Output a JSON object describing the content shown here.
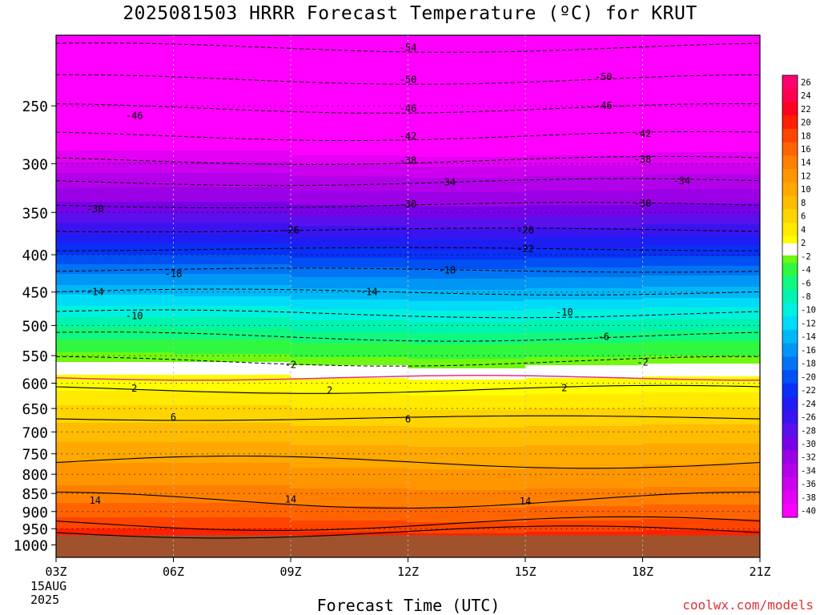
{
  "title": "2025081503 HRRR Forecast Temperature (ºC) for KRUT",
  "xlabel": "Forecast Time (UTC)",
  "credit": "coolwx.com/models",
  "date_label": [
    "15AUG",
    "2025"
  ],
  "chart_data": {
    "type": "heatmap",
    "title": "2025081503 HRRR Forecast Temperature (ºC) for KRUT",
    "xlabel": "Forecast Time (UTC)",
    "x_ticks": [
      "03Z",
      "06Z",
      "09Z",
      "12Z",
      "15Z",
      "18Z",
      "21Z"
    ],
    "x_hours": [
      3,
      6,
      9,
      12,
      15,
      18,
      21
    ],
    "y_ticks": [
      250,
      300,
      350,
      400,
      450,
      500,
      550,
      600,
      650,
      700,
      750,
      800,
      850,
      900,
      950,
      1000
    ],
    "y_axis_top_hpa": 200,
    "y_axis_bottom_hpa": 1040,
    "y_scale": "log-pressure",
    "surface_pressure_hpa": 970,
    "colorbar_ticks": [
      26,
      24,
      22,
      20,
      18,
      16,
      14,
      12,
      10,
      8,
      6,
      4,
      2,
      -2,
      -4,
      -6,
      -8,
      -10,
      -12,
      -14,
      -16,
      -18,
      -20,
      -22,
      -24,
      -26,
      -28,
      -30,
      -32,
      -34,
      -36,
      -38,
      -40
    ],
    "colors": {
      "ground": "#a0522d",
      "freezing_line": "#e0308a",
      "credit": "#e0303a"
    },
    "color_levels": [
      {
        "t": -40,
        "color": "#ff00ff"
      },
      {
        "t": -38,
        "color": "#e400f4"
      },
      {
        "t": -36,
        "color": "#cc00ee"
      },
      {
        "t": -34,
        "color": "#b400ea"
      },
      {
        "t": -32,
        "color": "#9c00e6"
      },
      {
        "t": -30,
        "color": "#7800e8"
      },
      {
        "t": -28,
        "color": "#5a10ec"
      },
      {
        "t": -26,
        "color": "#3a14f0"
      },
      {
        "t": -24,
        "color": "#1e1ef4"
      },
      {
        "t": -22,
        "color": "#0a30f6"
      },
      {
        "t": -20,
        "color": "#0050f4"
      },
      {
        "t": -18,
        "color": "#0074f4"
      },
      {
        "t": -16,
        "color": "#0096f6"
      },
      {
        "t": -14,
        "color": "#00b8f8"
      },
      {
        "t": -12,
        "color": "#00dcf8"
      },
      {
        "t": -10,
        "color": "#00f0e0"
      },
      {
        "t": -8,
        "color": "#00f4b0"
      },
      {
        "t": -6,
        "color": "#10f880"
      },
      {
        "t": -4,
        "color": "#30f840"
      },
      {
        "t": -2,
        "color": "#70f810"
      },
      {
        "t": 0,
        "color": "#ffffff"
      },
      {
        "t": 2,
        "color": "#ffff00"
      },
      {
        "t": 4,
        "color": "#ffea00"
      },
      {
        "t": 6,
        "color": "#ffd400"
      },
      {
        "t": 8,
        "color": "#ffbc00"
      },
      {
        "t": 10,
        "color": "#ffa800"
      },
      {
        "t": 12,
        "color": "#ff9600"
      },
      {
        "t": 14,
        "color": "#ff8000"
      },
      {
        "t": 16,
        "color": "#ff6400"
      },
      {
        "t": 18,
        "color": "#ff4400"
      },
      {
        "t": 20,
        "color": "#ff2000"
      },
      {
        "t": 22,
        "color": "#ff0020"
      },
      {
        "t": 24,
        "color": "#ff0050"
      },
      {
        "t": 26,
        "color": "#ff0070"
      }
    ],
    "temperature_profile": [
      {
        "p": 200,
        "t": -57
      },
      {
        "p": 230,
        "t": -52
      },
      {
        "p": 250,
        "t": -47
      },
      {
        "p": 270,
        "t": -43
      },
      {
        "p": 290,
        "t": -39
      },
      {
        "p": 310,
        "t": -35
      },
      {
        "p": 340,
        "t": -31
      },
      {
        "p": 370,
        "t": -26
      },
      {
        "p": 395,
        "t": -22
      },
      {
        "p": 420,
        "t": -18
      },
      {
        "p": 450,
        "t": -14
      },
      {
        "p": 480,
        "t": -10
      },
      {
        "p": 515,
        "t": -6
      },
      {
        "p": 560,
        "t": -2
      },
      {
        "p": 570,
        "t": 0
      },
      {
        "p": 605,
        "t": 2
      },
      {
        "p": 660,
        "t": 6
      },
      {
        "p": 750,
        "t": 10
      },
      {
        "p": 860,
        "t": 14
      },
      {
        "p": 900,
        "t": 16
      },
      {
        "p": 940,
        "t": 18
      },
      {
        "p": 970,
        "t": 20
      }
    ],
    "contours_dashed": [
      {
        "t": -54,
        "p": 208,
        "labels": [
          [
            12,
            208
          ]
        ]
      },
      {
        "t": -50,
        "p": 230,
        "labels": [
          [
            12,
            230
          ],
          [
            17,
            228
          ]
        ]
      },
      {
        "t": -46,
        "p": 252,
        "labels": [
          [
            5,
            258
          ],
          [
            12,
            252
          ],
          [
            17,
            250
          ]
        ]
      },
      {
        "t": -42,
        "p": 275,
        "labels": [
          [
            12,
            275
          ],
          [
            18,
            273
          ]
        ]
      },
      {
        "t": -38,
        "p": 297,
        "labels": [
          [
            12,
            297
          ],
          [
            18,
            296
          ]
        ]
      },
      {
        "t": -34,
        "p": 318,
        "labels": [
          [
            13,
            318
          ],
          [
            19,
            317
          ]
        ]
      },
      {
        "t": -30,
        "p": 342,
        "labels": [
          [
            4,
            346
          ],
          [
            12,
            341
          ],
          [
            18,
            340
          ]
        ]
      },
      {
        "t": -26,
        "p": 370,
        "labels": [
          [
            9,
            370
          ],
          [
            15,
            370
          ]
        ]
      },
      {
        "t": -22,
        "p": 393,
        "labels": [
          [
            15,
            393
          ]
        ]
      },
      {
        "t": -18,
        "p": 420,
        "labels": [
          [
            6,
            425
          ],
          [
            13,
            420
          ]
        ]
      },
      {
        "t": -14,
        "p": 450,
        "labels": [
          [
            4,
            450
          ],
          [
            11,
            450
          ]
        ]
      },
      {
        "t": -10,
        "p": 482,
        "labels": [
          [
            5,
            485
          ],
          [
            16,
            480
          ]
        ]
      },
      {
        "t": -6,
        "p": 518,
        "labels": [
          [
            17,
            518
          ]
        ]
      },
      {
        "t": -2,
        "p": 560,
        "labels": [
          [
            9,
            566
          ],
          [
            18,
            562
          ]
        ]
      }
    ],
    "contours_solid": [
      {
        "t": 2,
        "p": 612,
        "labels": [
          [
            5,
            610
          ],
          [
            10,
            614
          ],
          [
            16,
            609
          ]
        ]
      },
      {
        "t": 6,
        "p": 670,
        "labels": [
          [
            6,
            668
          ],
          [
            12,
            672
          ]
        ]
      },
      {
        "t": 10,
        "p": 770
      },
      {
        "t": 14,
        "p": 868,
        "labels": [
          [
            4,
            869
          ],
          [
            9,
            866
          ],
          [
            15,
            871
          ]
        ]
      },
      {
        "t": 18,
        "p": 935
      },
      {
        "t": 22,
        "p": 960
      }
    ]
  }
}
